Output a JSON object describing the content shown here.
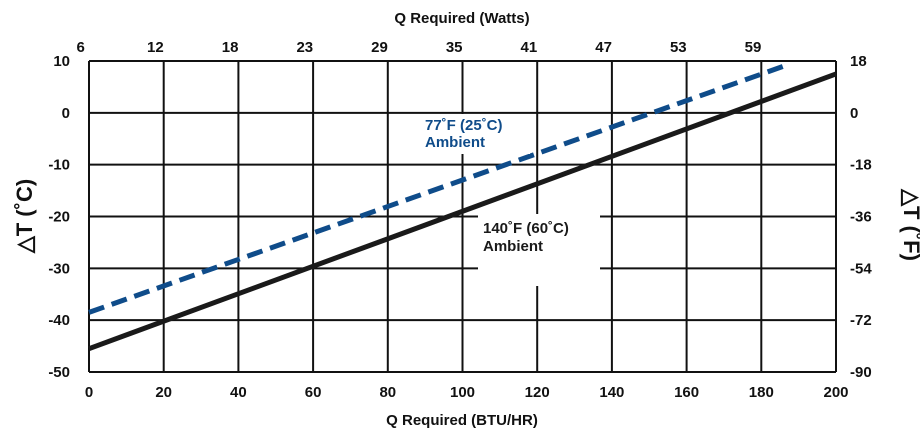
{
  "chart_data": {
    "type": "line",
    "top_axis_title": "Q Required (Watts)",
    "xlabel": "Q Required (BTU/HR)",
    "ylabel_left": "△T (˚C)",
    "ylabel_right": "△T (˚F)",
    "xlim": [
      0,
      200
    ],
    "ylim": [
      -50,
      10
    ],
    "x_ticks": [
      "0",
      "20",
      "40",
      "60",
      "80",
      "100",
      "120",
      "140",
      "160",
      "180",
      "200"
    ],
    "x_tick_values": [
      0,
      20,
      40,
      60,
      80,
      100,
      120,
      140,
      160,
      180,
      200
    ],
    "top_ticks": [
      "6",
      "12",
      "18",
      "23",
      "29",
      "35",
      "41",
      "47",
      "53",
      "59"
    ],
    "top_tick_values": [
      20,
      40,
      60,
      80,
      100,
      120,
      140,
      160,
      180,
      200
    ],
    "y_ticks_left": [
      "10",
      "0",
      "-10",
      "-20",
      "-30",
      "-40",
      "-50"
    ],
    "y_tick_values": [
      10,
      0,
      -10,
      -20,
      -30,
      -40,
      -50
    ],
    "y_ticks_right": [
      "18",
      "0",
      "-18",
      "-36",
      "-54",
      "-72",
      "-90"
    ],
    "grid": true,
    "series": [
      {
        "name": "77˚F (25˚C) Ambient",
        "style": "dashed",
        "color": "#0f4c8a",
        "x": [
          0,
          186
        ],
        "y": [
          -38.5,
          9.0
        ]
      },
      {
        "name": "140˚F (60˚C) Ambient",
        "style": "solid",
        "color": "#1a1a1a",
        "x": [
          0,
          200
        ],
        "y": [
          -45.5,
          7.5
        ]
      }
    ],
    "annotations": [
      {
        "lines": [
          "77˚F (25˚C)",
          "Ambient"
        ],
        "color": "#0f4c8a"
      },
      {
        "lines": [
          "140˚F (60˚C)",
          "Ambient"
        ],
        "color": "#1a1a1a"
      }
    ]
  }
}
